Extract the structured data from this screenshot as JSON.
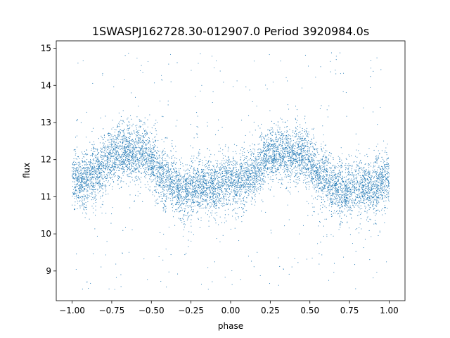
{
  "chart_data": {
    "type": "scatter",
    "title": "1SWASPJ162728.30-012907.0 Period 3920984.0s",
    "xlabel": "phase",
    "ylabel": "flux",
    "xlim": [
      -1.1,
      1.1
    ],
    "ylim": [
      8.2,
      15.2
    ],
    "grid": false,
    "point_color": "#1f77b4",
    "x_ticks": [
      -1.0,
      -0.75,
      -0.5,
      -0.25,
      0.0,
      0.25,
      0.5,
      0.75,
      1.0
    ],
    "x_tick_labels": [
      "−1.00",
      "−0.75",
      "−0.50",
      "−0.25",
      "0.00",
      "0.25",
      "0.50",
      "0.75",
      "1.00"
    ],
    "y_ticks": [
      9,
      10,
      11,
      12,
      13,
      14,
      15
    ],
    "y_tick_labels": [
      "9",
      "10",
      "11",
      "12",
      "13",
      "14",
      "15"
    ],
    "x_range": [
      -1.0,
      1.0
    ],
    "period_in_phase": 1.0,
    "trend_phase": [
      -1.0,
      -0.95,
      -0.9,
      -0.85,
      -0.8,
      -0.75,
      -0.7,
      -0.65,
      -0.6,
      -0.55,
      -0.5,
      -0.45,
      -0.4,
      -0.35,
      -0.3,
      -0.25,
      -0.2,
      -0.15,
      -0.1,
      -0.05,
      0.0
    ],
    "trend_flux": [
      11.5,
      11.4,
      11.5,
      11.6,
      11.9,
      12.1,
      12.2,
      12.2,
      12.1,
      12.2,
      11.9,
      11.6,
      11.5,
      11.3,
      11.1,
      11.2,
      11.3,
      11.3,
      11.2,
      11.4,
      11.5
    ],
    "n_points": 9000,
    "core_scatter": 0.45,
    "outlier_fraction": 0.04,
    "outlier_flux_range": [
      8.5,
      14.9
    ]
  }
}
